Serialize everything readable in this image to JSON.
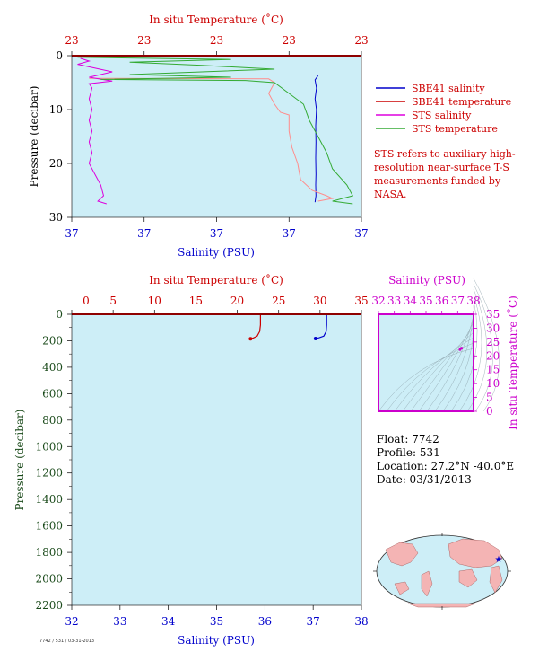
{
  "colors": {
    "plot_bg": "#cdeef7",
    "temp": "#cc0000",
    "salinity": "#0000cc",
    "sts_salinity": "#dd00dd",
    "sts_temp": "#33aa33",
    "sbe_temp_trace": "#ff8c8c",
    "ts_purple": "#cc00cc",
    "pressure_axis": "#1a4a1a"
  },
  "legend": {
    "items": [
      {
        "label": "SBE41 salinity",
        "color": "#0000cc"
      },
      {
        "label": "SBE41 temperature",
        "color": "#cc0000"
      },
      {
        "label": "STS salinity",
        "color": "#dd00dd"
      },
      {
        "label": "STS temperature",
        "color": "#33aa33"
      }
    ],
    "note": "STS refers to auxiliary high-resolution near-surface T-S measurements funded by NASA."
  },
  "float_info": {
    "float": "Float:  7742",
    "profile": "Profile:  531",
    "location": "Location:  27.2°N  -40.0°E",
    "date": "Date:  03/31/2013"
  },
  "footer_tiny": "7742 / 531 / 03-31-2013",
  "chart_data": [
    {
      "type": "line",
      "title": "",
      "top_axis_label": "In situ Temperature (˚C)",
      "top_ticks": [
        "23",
        "23",
        "23",
        "23",
        "23"
      ],
      "xlabel": "Salinity (PSU)",
      "bottom_ticks": [
        "37",
        "37",
        "37",
        "37",
        "37"
      ],
      "ylabel": "Pressure (decibar)",
      "y_ticks": [
        0,
        10,
        20,
        30
      ],
      "ylim": [
        0,
        30
      ],
      "series": [
        {
          "name": "SBE41 salinity",
          "color": "#0000cc",
          "points": [
            [
              0.85,
              3.7
            ],
            [
              0.84,
              4.5
            ],
            [
              0.845,
              6
            ],
            [
              0.84,
              8
            ],
            [
              0.845,
              10
            ],
            [
              0.842,
              13
            ],
            [
              0.843,
              16
            ],
            [
              0.842,
              19
            ],
            [
              0.843,
              22
            ],
            [
              0.842,
              24
            ],
            [
              0.843,
              26
            ],
            [
              0.84,
              27.2
            ]
          ]
        },
        {
          "name": "SBE41 temperature",
          "color": "#ff8c8c",
          "points": [
            [
              0.06,
              4.2
            ],
            [
              0.68,
              4.3
            ],
            [
              0.7,
              5
            ],
            [
              0.68,
              7
            ],
            [
              0.7,
              9
            ],
            [
              0.72,
              10.5
            ],
            [
              0.75,
              11
            ],
            [
              0.75,
              14
            ],
            [
              0.76,
              17
            ],
            [
              0.78,
              20
            ],
            [
              0.79,
              23
            ],
            [
              0.83,
              25
            ],
            [
              0.88,
              26
            ],
            [
              0.9,
              26.5
            ],
            [
              0.85,
              27
            ]
          ]
        },
        {
          "name": "STS salinity",
          "color": "#dd00dd",
          "points": [
            [
              0.03,
              0.5
            ],
            [
              0.06,
              1
            ],
            [
              0.02,
              1.6
            ],
            [
              0.14,
              3
            ],
            [
              0.06,
              4
            ],
            [
              0.14,
              4.7
            ],
            [
              0.06,
              5.2
            ],
            [
              0.07,
              6
            ],
            [
              0.06,
              8
            ],
            [
              0.07,
              10
            ],
            [
              0.06,
              12
            ],
            [
              0.07,
              14
            ],
            [
              0.06,
              16
            ],
            [
              0.07,
              18
            ],
            [
              0.06,
              20
            ],
            [
              0.08,
              22
            ],
            [
              0.1,
              24
            ],
            [
              0.11,
              26
            ],
            [
              0.09,
              27
            ],
            [
              0.12,
              27.5
            ]
          ]
        },
        {
          "name": "STS temperature",
          "color": "#33aa33",
          "points": [
            [
              0.02,
              0.3
            ],
            [
              0.55,
              0.7
            ],
            [
              0.2,
              1.2
            ],
            [
              0.45,
              1.8
            ],
            [
              0.7,
              2.5
            ],
            [
              0.2,
              3.5
            ],
            [
              0.55,
              4
            ],
            [
              0.1,
              4.4
            ],
            [
              0.6,
              4.6
            ],
            [
              0.7,
              5
            ],
            [
              0.75,
              7
            ],
            [
              0.8,
              9
            ],
            [
              0.82,
              12
            ],
            [
              0.85,
              15
            ],
            [
              0.88,
              18
            ],
            [
              0.9,
              21
            ],
            [
              0.95,
              24
            ],
            [
              0.97,
              26
            ],
            [
              0.9,
              27
            ],
            [
              0.97,
              27.5
            ]
          ]
        }
      ]
    },
    {
      "type": "line",
      "title": "",
      "top_axis_label": "In situ Temperature (˚C)",
      "top_ticks": [
        0,
        5,
        10,
        15,
        20,
        25,
        30,
        35
      ],
      "xlim_temp": [
        0,
        35
      ],
      "xlabel": "Salinity (PSU)",
      "bottom_ticks": [
        32,
        33,
        34,
        35,
        36,
        37,
        38
      ],
      "xlim_sal": [
        32,
        38
      ],
      "ylabel": "Pressure (decibar)",
      "y_ticks": [
        0,
        200,
        400,
        600,
        800,
        1000,
        1200,
        1400,
        1600,
        1800,
        2000,
        2200
      ],
      "ylim": [
        0,
        2200
      ],
      "series": [
        {
          "name": "SBE41 temperature",
          "color": "#cc0000",
          "points_temp": [
            [
              22.8,
              0
            ],
            [
              22.8,
              80
            ],
            [
              22.7,
              130
            ],
            [
              22.4,
              165
            ],
            [
              21.9,
              180
            ],
            [
              21.6,
              185
            ]
          ]
        },
        {
          "name": "SBE41 salinity",
          "color": "#0000cc",
          "points_sal": [
            [
              37.28,
              0
            ],
            [
              37.28,
              80
            ],
            [
              37.27,
              130
            ],
            [
              37.22,
              165
            ],
            [
              37.12,
              178
            ],
            [
              37.05,
              183
            ]
          ]
        }
      ]
    },
    {
      "type": "scatter",
      "top_axis_label": "Salinity (PSU)",
      "top_ticks": [
        32,
        33,
        34,
        35,
        36,
        37,
        38
      ],
      "xlim": [
        32,
        38
      ],
      "ylabel": "In situ Temperature (˚C)",
      "y_ticks": [
        0,
        5,
        10,
        15,
        20,
        25,
        30,
        35
      ],
      "ylim": [
        0,
        35
      ],
      "points": [
        [
          37.25,
          22.8
        ],
        [
          37.15,
          22.3
        ]
      ]
    }
  ]
}
